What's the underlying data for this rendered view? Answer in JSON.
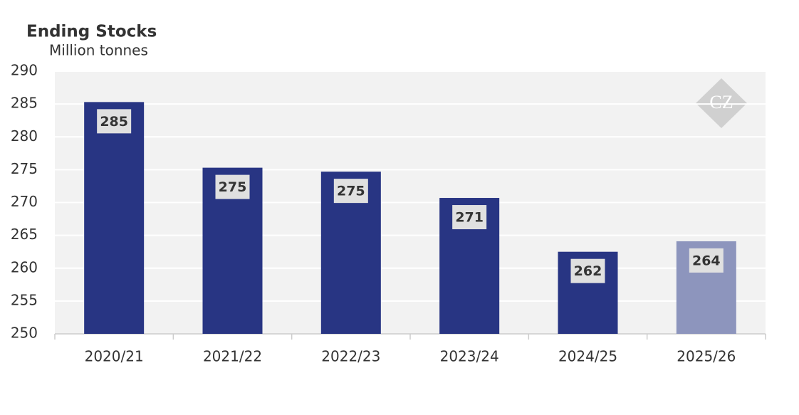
{
  "chart_data": {
    "type": "bar",
    "title": "Ending Stocks",
    "subtitle": "Million tonnes",
    "watermark": "CZ",
    "categories": [
      "2020/21",
      "2021/22",
      "2022/23",
      "2023/24",
      "2024/25",
      "2025/26"
    ],
    "values": [
      285.3,
      275.3,
      274.7,
      270.7,
      262.5,
      264.1
    ],
    "value_labels": [
      "285",
      "275",
      "275",
      "271",
      "262",
      "264"
    ],
    "colors": [
      "#283583",
      "#283583",
      "#283583",
      "#283583",
      "#283583",
      "#8d95bd"
    ],
    "ylim": [
      250,
      290
    ],
    "yticks": [
      250,
      255,
      260,
      265,
      270,
      275,
      280,
      285,
      290
    ],
    "grid": true
  }
}
